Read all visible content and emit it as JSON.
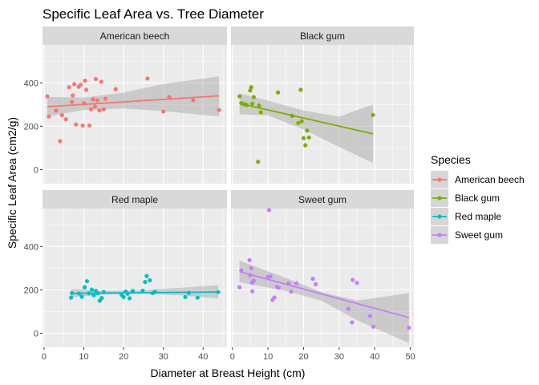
{
  "chart_data": {
    "type": "scatter",
    "title": "Specific Leaf Area vs. Tree Diameter",
    "xlabel": "Diameter at Breast Height (cm)",
    "ylabel": "Specific Leaf Area (cm2/g)",
    "x_ticks": [
      0,
      10,
      20,
      30,
      40,
      50
    ],
    "y_ticks": [
      0,
      200,
      400
    ],
    "facet_x_range": {
      "left": [
        -0.4,
        46
      ],
      "right": [
        -0.4,
        51
      ]
    },
    "facet_y_range": [
      -65,
      575
    ],
    "legend": {
      "title": "Species",
      "position": "right",
      "entries": [
        "American beech",
        "Black gum",
        "Red maple",
        "Sweet gum"
      ]
    },
    "colors": {
      "panel_bg": "#ebebeb",
      "strip_bg": "#d9d9d9",
      "gridline": "#ffffff",
      "ribbon": "#999999"
    },
    "series": [
      {
        "name": "American beech",
        "color": "#F8766D",
        "points": [
          [
            0.8,
            338
          ],
          [
            1.2,
            245
          ],
          [
            3,
            272
          ],
          [
            4,
            131
          ],
          [
            4.5,
            251
          ],
          [
            5.5,
            232
          ],
          [
            6.3,
            380
          ],
          [
            7,
            312
          ],
          [
            7.2,
            342
          ],
          [
            7.6,
            394
          ],
          [
            8,
            208
          ],
          [
            8.7,
            382
          ],
          [
            9.2,
            391
          ],
          [
            9.7,
            203
          ],
          [
            10,
            306
          ],
          [
            10.3,
            410
          ],
          [
            10.6,
            368
          ],
          [
            11.4,
            203
          ],
          [
            11.8,
            278
          ],
          [
            12.3,
            324
          ],
          [
            12.8,
            291
          ],
          [
            13,
            418
          ],
          [
            13.4,
            320
          ],
          [
            13.9,
            273
          ],
          [
            14.4,
            405
          ],
          [
            15,
            278
          ],
          [
            15.4,
            327
          ],
          [
            18,
            371
          ],
          [
            26,
            420
          ],
          [
            30,
            268
          ],
          [
            31.5,
            334
          ],
          [
            37.5,
            320
          ],
          [
            44,
            275
          ]
        ],
        "fit": [
          [
            0.8,
            290
          ],
          [
            44,
            340
          ]
        ],
        "ribbon": [
          [
            0.8,
            245,
            335
          ],
          [
            10,
            275,
            332
          ],
          [
            20,
            282,
            355
          ],
          [
            30,
            270,
            395
          ],
          [
            44,
            245,
            430
          ]
        ]
      },
      {
        "name": "Black gum",
        "color": "#7CAE00",
        "points": [
          [
            2,
            338
          ],
          [
            2.5,
            306
          ],
          [
            3.2,
            302
          ],
          [
            4,
            298
          ],
          [
            5,
            365
          ],
          [
            5.3,
            380
          ],
          [
            5.6,
            304
          ],
          [
            6,
            334
          ],
          [
            7.2,
            36
          ],
          [
            7.5,
            296
          ],
          [
            8,
            264
          ],
          [
            12.8,
            356
          ],
          [
            16.8,
            248
          ],
          [
            18.5,
            215
          ],
          [
            19.2,
            368
          ],
          [
            19.5,
            223
          ],
          [
            20,
            145
          ],
          [
            20.5,
            112
          ],
          [
            21,
            180
          ],
          [
            21.5,
            148
          ],
          [
            39.5,
            252
          ]
        ],
        "fit": [
          [
            2,
            305
          ],
          [
            39.5,
            165
          ]
        ],
        "ribbon": [
          [
            2,
            255,
            352
          ],
          [
            10,
            250,
            318
          ],
          [
            20,
            185,
            272
          ],
          [
            30,
            105,
            245
          ],
          [
            39.5,
            30,
            300
          ]
        ]
      },
      {
        "name": "Red maple",
        "color": "#00BFC4",
        "points": [
          [
            6.8,
            164
          ],
          [
            7,
            185
          ],
          [
            8.8,
            183
          ],
          [
            9.5,
            168
          ],
          [
            10.2,
            212
          ],
          [
            10.8,
            240
          ],
          [
            11.3,
            184
          ],
          [
            12,
            201
          ],
          [
            12.5,
            176
          ],
          [
            13,
            195
          ],
          [
            13.5,
            184
          ],
          [
            14,
            150
          ],
          [
            14.5,
            162
          ],
          [
            15,
            190
          ],
          [
            19.5,
            177
          ],
          [
            20,
            167
          ],
          [
            20.5,
            192
          ],
          [
            21,
            182
          ],
          [
            21.5,
            161
          ],
          [
            22.3,
            195
          ],
          [
            24.8,
            196
          ],
          [
            25.4,
            236
          ],
          [
            25.8,
            264
          ],
          [
            26.6,
            244
          ],
          [
            27.3,
            185
          ],
          [
            27.9,
            191
          ],
          [
            35.5,
            167
          ],
          [
            36.4,
            186
          ],
          [
            38.6,
            164
          ],
          [
            43.8,
            190
          ]
        ],
        "fit": [
          [
            6.8,
            184
          ],
          [
            43.8,
            190
          ]
        ],
        "ribbon": [
          [
            6.8,
            166,
            205
          ],
          [
            15,
            178,
            195
          ],
          [
            25,
            182,
            200
          ],
          [
            35,
            174,
            210
          ],
          [
            43.8,
            160,
            222
          ]
        ]
      },
      {
        "name": "Sweet gum",
        "color": "#C77CFF",
        "points": [
          [
            2,
            212
          ],
          [
            2.5,
            290
          ],
          [
            4.8,
            337
          ],
          [
            5,
            268
          ],
          [
            5.3,
            300
          ],
          [
            5.5,
            233
          ],
          [
            5.6,
            193
          ],
          [
            6,
            242
          ],
          [
            10,
            260
          ],
          [
            10.3,
            568
          ],
          [
            10.7,
            262
          ],
          [
            11.3,
            154
          ],
          [
            11.8,
            165
          ],
          [
            12.5,
            214
          ],
          [
            13,
            210
          ],
          [
            15.8,
            229
          ],
          [
            16.5,
            192
          ],
          [
            18,
            230
          ],
          [
            22.6,
            251
          ],
          [
            23.4,
            226
          ],
          [
            32.6,
            112
          ],
          [
            33.6,
            50
          ],
          [
            33.8,
            246
          ],
          [
            35,
            232
          ],
          [
            38.7,
            80
          ],
          [
            39.6,
            30
          ],
          [
            49.6,
            25
          ]
        ],
        "fit": [
          [
            2,
            284
          ],
          [
            49.6,
            72
          ]
        ],
        "ribbon": [
          [
            2,
            235,
            335
          ],
          [
            15,
            195,
            255
          ],
          [
            25,
            150,
            190
          ],
          [
            35,
            60,
            150
          ],
          [
            49.6,
            -45,
            185
          ]
        ]
      }
    ]
  }
}
